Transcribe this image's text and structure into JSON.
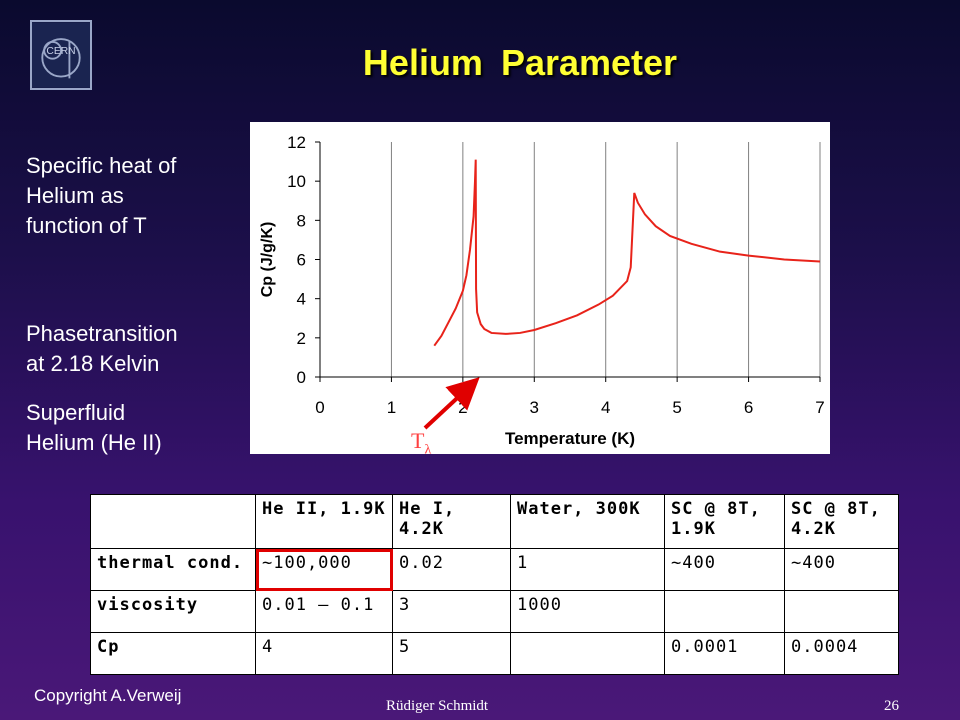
{
  "slide": {
    "title": "Helium Parameter",
    "logo_text": "CERN",
    "side_text_1": [
      "Specific heat of",
      "Helium as",
      "function of T"
    ],
    "side_text_2": [
      "Phasetransition",
      "at 2.18 Kelvin"
    ],
    "side_text_3": [
      "Superfluid",
      "Helium (He II)"
    ],
    "t_lambda": "T",
    "t_lambda_sub": "λ",
    "copyright": "Copyright A.Verweij",
    "author": "Rüdiger Schmidt",
    "page_number": "26"
  },
  "chart_data": {
    "type": "line",
    "xlabel": "Temperature (K)",
    "ylabel": "Cp (J/g/K)",
    "xlim": [
      0,
      7
    ],
    "ylim": [
      0,
      12
    ],
    "xticks": [
      0,
      1,
      2,
      3,
      4,
      5,
      6,
      7
    ],
    "yticks": [
      0,
      2,
      4,
      6,
      8,
      10,
      12
    ],
    "grid": "vertical",
    "line_color": "#e8231a",
    "series": [
      {
        "x": [
          1.6,
          1.7,
          1.8,
          1.9,
          2.0,
          2.05,
          2.1,
          2.15,
          2.17,
          2.18,
          2.185,
          2.2,
          2.25,
          2.3,
          2.4,
          2.6,
          2.8,
          3.0,
          3.3,
          3.6,
          3.9,
          4.1,
          4.3,
          4.35,
          4.4,
          4.45,
          4.55,
          4.7,
          4.9,
          5.2,
          5.6,
          6.0,
          6.5,
          7.0
        ],
        "y": [
          1.6,
          2.1,
          2.8,
          3.5,
          4.4,
          5.2,
          6.5,
          8.2,
          10.0,
          11.1,
          4.5,
          3.3,
          2.7,
          2.45,
          2.25,
          2.2,
          2.25,
          2.4,
          2.75,
          3.15,
          3.7,
          4.15,
          4.9,
          5.6,
          9.4,
          8.9,
          8.3,
          7.7,
          7.2,
          6.8,
          6.4,
          6.2,
          6.0,
          5.9
        ]
      }
    ]
  },
  "table": {
    "headers": [
      "",
      "He II, 1.9K",
      "He I, 4.2K",
      "Water, 300K",
      "SC @ 8T, 1.9K",
      "SC @ 8T, 4.2K"
    ],
    "rows": [
      [
        "thermal cond.",
        "~100,000",
        "0.02",
        "1",
        "~400",
        "~400"
      ],
      [
        "viscosity",
        "0.01 – 0.1",
        "3",
        "1000",
        "",
        ""
      ],
      [
        "Cp",
        "4",
        "5",
        "",
        "0.0001",
        "0.0004"
      ]
    ],
    "highlight_color": "#e00000"
  }
}
